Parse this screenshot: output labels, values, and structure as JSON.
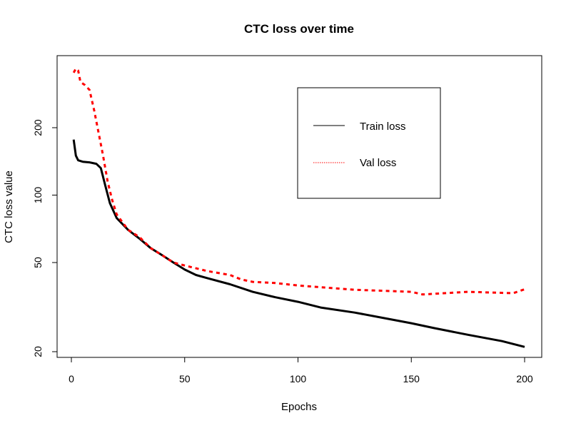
{
  "chart_data": {
    "type": "line",
    "title": "CTC loss over time",
    "xlabel": "Epochs",
    "ylabel": "CTC loss value",
    "xlim": [
      0,
      200
    ],
    "ylim": [
      20,
      400
    ],
    "y_scale": "log",
    "x_ticks": [
      0,
      50,
      100,
      150,
      200
    ],
    "y_ticks": [
      20,
      50,
      100,
      200
    ],
    "grid": false,
    "legend": "top-right",
    "series": [
      {
        "name": "Train loss",
        "color": "#000000",
        "style": "solid",
        "x": [
          1,
          2,
          3,
          5,
          8,
          11,
          13,
          15,
          17,
          20,
          25,
          30,
          35,
          40,
          45,
          50,
          55,
          60,
          70,
          80,
          90,
          100,
          110,
          125,
          140,
          150,
          160,
          175,
          190,
          200
        ],
        "y": [
          177,
          150,
          143,
          141,
          140,
          138,
          132,
          110,
          92,
          79,
          70,
          64,
          58,
          54,
          50,
          46.5,
          44,
          42.6,
          40,
          37,
          35,
          33.4,
          31.5,
          29.9,
          28,
          26.8,
          25.5,
          23.8,
          22.3,
          21
        ]
      },
      {
        "name": "Val loss",
        "color": "#ff0000",
        "style": "dotted",
        "x": [
          1,
          2,
          3,
          4,
          6,
          8,
          10,
          12,
          14,
          16,
          18,
          20,
          25,
          30,
          35,
          40,
          45,
          50,
          60,
          70,
          75,
          80,
          90,
          100,
          110,
          125,
          150,
          155,
          175,
          195,
          200
        ],
        "y": [
          352,
          367,
          360,
          320,
          310,
          295,
          240,
          190,
          150,
          115,
          95,
          82,
          70,
          65,
          58,
          54,
          50,
          48.5,
          45.8,
          44,
          42,
          41,
          40.5,
          39.5,
          38.8,
          37.8,
          37,
          36,
          37,
          36.5,
          38
        ]
      }
    ]
  }
}
